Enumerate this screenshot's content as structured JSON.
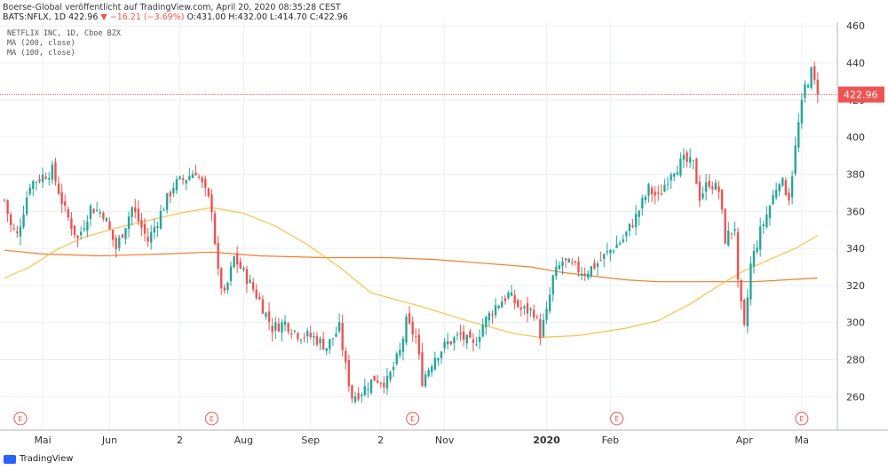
{
  "header": {
    "publish_line": "Boerse-Global veröffentlicht auf TradingView.com, April 20, 2020 08:35:28 CEST",
    "symbol_line": "BATS:NFLX, 1D",
    "last": "422.96",
    "change": "▼ −16.21 (−3.69%)",
    "ohlc": {
      "o": "O:431.00",
      "h": "H:432.00",
      "l": "L:414.70",
      "c": "C:422.96"
    }
  },
  "legend": {
    "instrument": "NETFLIX INC, 1D, Cboe BZX",
    "ma200": "MA (200, close)",
    "ma100": "MA (100, close)"
  },
  "colors": {
    "up": "#26a69a",
    "down": "#ef5350",
    "ma200": "#f57c2b",
    "ma100": "#fbc14b",
    "price_line": "#ef5350",
    "grid": "#eceff3"
  },
  "footer": {
    "brand": "TradingView"
  },
  "chart_data": {
    "type": "candlestick",
    "symbol": "NFLX",
    "ylim": [
      242,
      462
    ],
    "y_ticks": [
      260,
      280,
      300,
      320,
      340,
      360,
      380,
      400,
      420,
      440,
      460
    ],
    "x_ticks": [
      "Mai",
      "Jun",
      "2",
      "Aug",
      "Sep",
      "2",
      "Nov",
      "2020",
      "Feb",
      "Apr",
      "Ma"
    ],
    "x_tick_days": [
      12,
      33,
      55,
      75,
      96,
      118,
      138,
      170,
      190,
      232,
      250
    ],
    "earnings_days": [
      5,
      65,
      128,
      192,
      250
    ],
    "earnings_label": "E",
    "last_price": 422.96,
    "anchors": [
      [
        0,
        366
      ],
      [
        2,
        352
      ],
      [
        4,
        347
      ],
      [
        8,
        375
      ],
      [
        12,
        379
      ],
      [
        15,
        382
      ],
      [
        19,
        360
      ],
      [
        23,
        345
      ],
      [
        27,
        362
      ],
      [
        31,
        359
      ],
      [
        35,
        340
      ],
      [
        40,
        362
      ],
      [
        45,
        344
      ],
      [
        49,
        359
      ],
      [
        53,
        374
      ],
      [
        57,
        378
      ],
      [
        60,
        382
      ],
      [
        64,
        366
      ],
      [
        65,
        362
      ],
      [
        67,
        326
      ],
      [
        69,
        314
      ],
      [
        72,
        335
      ],
      [
        76,
        324
      ],
      [
        80,
        312
      ],
      [
        84,
        297
      ],
      [
        88,
        300
      ],
      [
        92,
        294
      ],
      [
        97,
        292
      ],
      [
        101,
        287
      ],
      [
        105,
        297
      ],
      [
        107,
        276
      ],
      [
        109,
        260
      ],
      [
        112,
        263
      ],
      [
        116,
        270
      ],
      [
        120,
        268
      ],
      [
        124,
        284
      ],
      [
        126,
        300
      ],
      [
        129,
        292
      ],
      [
        131,
        269
      ],
      [
        135,
        282
      ],
      [
        139,
        289
      ],
      [
        143,
        293
      ],
      [
        147,
        287
      ],
      [
        150,
        299
      ],
      [
        154,
        309
      ],
      [
        158,
        315
      ],
      [
        162,
        307
      ],
      [
        166,
        306
      ],
      [
        168,
        294
      ],
      [
        170,
        305
      ],
      [
        172,
        324
      ],
      [
        175,
        333
      ],
      [
        178,
        330
      ],
      [
        182,
        327
      ],
      [
        186,
        332
      ],
      [
        190,
        339
      ],
      [
        194,
        345
      ],
      [
        198,
        357
      ],
      [
        202,
        372
      ],
      [
        205,
        367
      ],
      [
        209,
        382
      ],
      [
        213,
        387
      ],
      [
        216,
        385
      ],
      [
        218,
        368
      ],
      [
        221,
        376
      ],
      [
        224,
        371
      ],
      [
        226,
        345
      ],
      [
        229,
        352
      ],
      [
        230,
        320
      ],
      [
        232,
        296
      ],
      [
        234,
        331
      ],
      [
        237,
        349
      ],
      [
        240,
        363
      ],
      [
        243,
        378
      ],
      [
        246,
        368
      ],
      [
        249,
        407
      ],
      [
        251,
        427
      ],
      [
        253,
        435
      ],
      [
        255,
        423
      ]
    ],
    "ma200": [
      [
        0,
        339
      ],
      [
        12,
        337
      ],
      [
        30,
        336
      ],
      [
        50,
        337
      ],
      [
        65,
        338
      ],
      [
        80,
        336
      ],
      [
        100,
        335
      ],
      [
        120,
        335
      ],
      [
        135,
        334
      ],
      [
        150,
        332
      ],
      [
        165,
        330
      ],
      [
        175,
        327
      ],
      [
        185,
        325
      ],
      [
        195,
        323
      ],
      [
        205,
        322
      ],
      [
        215,
        322
      ],
      [
        225,
        322
      ],
      [
        235,
        322
      ],
      [
        245,
        323
      ],
      [
        255,
        324
      ]
    ],
    "ma100": [
      [
        0,
        324
      ],
      [
        8,
        330
      ],
      [
        16,
        339
      ],
      [
        25,
        346
      ],
      [
        35,
        351
      ],
      [
        45,
        355
      ],
      [
        55,
        359
      ],
      [
        65,
        362
      ],
      [
        75,
        359
      ],
      [
        85,
        352
      ],
      [
        95,
        342
      ],
      [
        105,
        330
      ],
      [
        115,
        316
      ],
      [
        130,
        309
      ],
      [
        145,
        301
      ],
      [
        160,
        294
      ],
      [
        168,
        292
      ],
      [
        180,
        293
      ],
      [
        195,
        297
      ],
      [
        205,
        301
      ],
      [
        215,
        310
      ],
      [
        225,
        321
      ],
      [
        232,
        328
      ],
      [
        240,
        334
      ],
      [
        248,
        340
      ],
      [
        255,
        347
      ]
    ]
  }
}
